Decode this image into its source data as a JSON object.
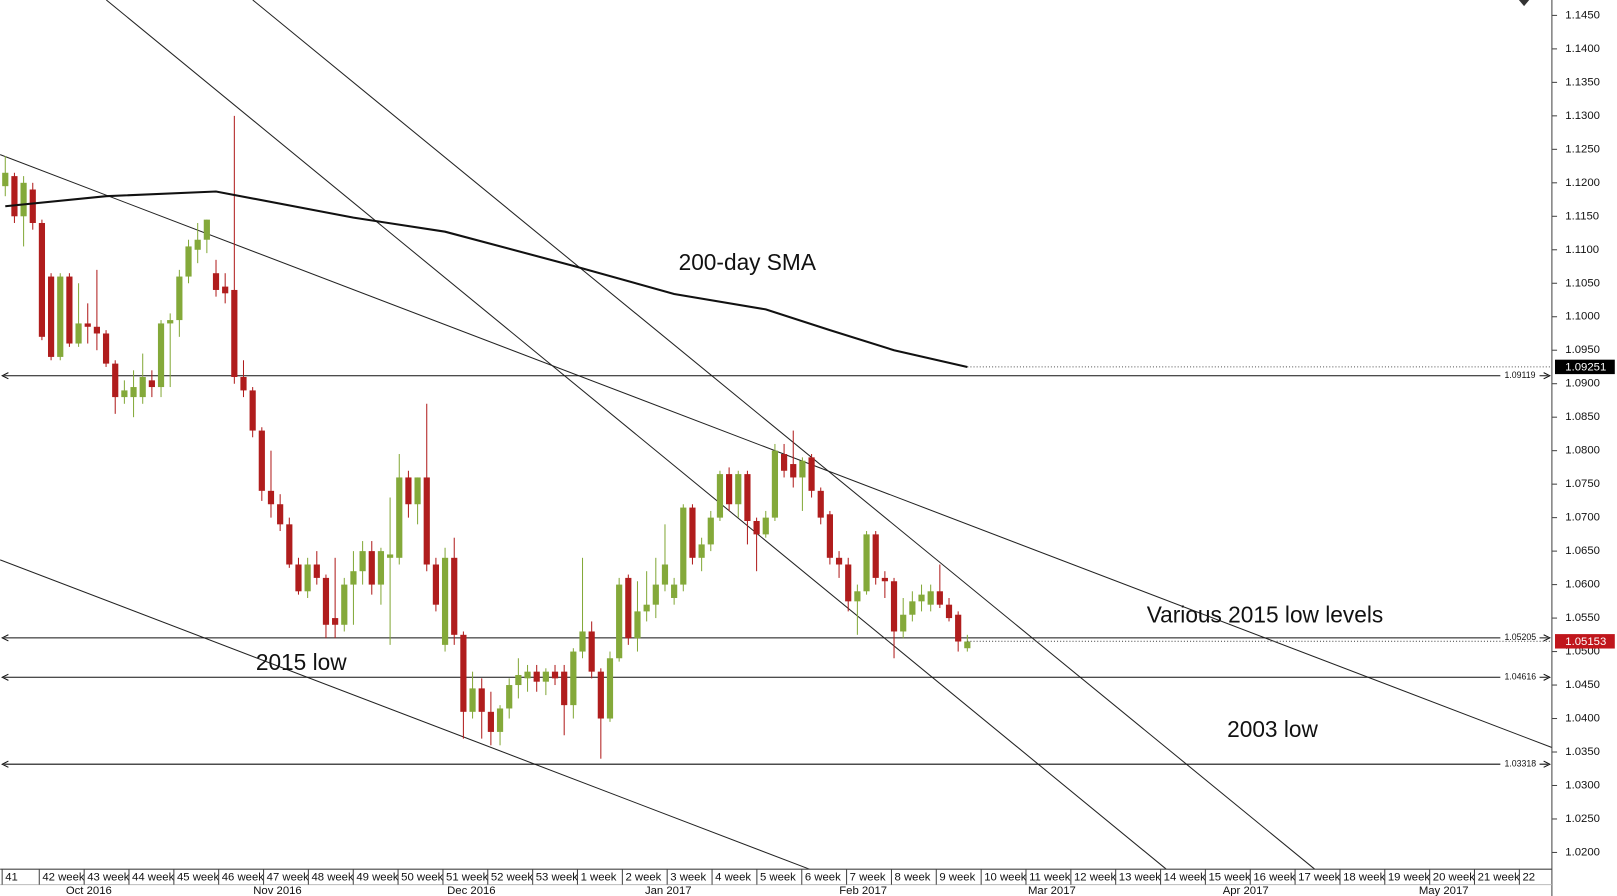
{
  "chart_data": {
    "type": "candlestick",
    "ohlc": [
      [
        1.1195,
        1.124,
        1.118,
        1.1215
      ],
      [
        1.121,
        1.1215,
        1.114,
        1.115
      ],
      [
        1.115,
        1.121,
        1.1105,
        1.12
      ],
      [
        1.119,
        1.12,
        1.113,
        1.114
      ],
      [
        1.114,
        1.1145,
        1.0965,
        1.097
      ],
      [
        1.106,
        1.1065,
        1.0935,
        1.094
      ],
      [
        1.094,
        1.1065,
        1.0935,
        1.106
      ],
      [
        1.106,
        1.1065,
        1.0955,
        1.096
      ],
      [
        1.096,
        1.105,
        1.0955,
        1.099
      ],
      [
        1.099,
        1.102,
        1.096,
        1.0985
      ],
      [
        1.0985,
        1.107,
        1.095,
        1.0975
      ],
      [
        1.0975,
        1.098,
        1.0925,
        1.093
      ],
      [
        1.093,
        1.0935,
        1.0855,
        1.088
      ],
      [
        1.088,
        1.0905,
        1.087,
        1.089
      ],
      [
        1.088,
        1.092,
        1.085,
        1.0895
      ],
      [
        1.088,
        1.0945,
        1.087,
        1.091
      ],
      [
        1.0905,
        1.092,
        1.088,
        1.0895
      ],
      [
        1.0895,
        1.0995,
        1.088,
        1.099
      ],
      [
        1.099,
        1.1005,
        1.0895,
        1.0995
      ],
      [
        1.0995,
        1.107,
        1.097,
        1.106
      ],
      [
        1.106,
        1.1115,
        1.105,
        1.1105
      ],
      [
        1.11,
        1.114,
        1.108,
        1.1115
      ],
      [
        1.1115,
        1.1145,
        1.1095,
        1.1145
      ],
      [
        1.1065,
        1.1085,
        1.103,
        1.104
      ],
      [
        1.1045,
        1.1065,
        1.102,
        1.1035
      ],
      [
        1.104,
        1.13,
        1.09,
        1.091
      ],
      [
        1.091,
        1.0935,
        1.088,
        1.089
      ],
      [
        1.089,
        1.0895,
        1.082,
        1.083
      ],
      [
        1.083,
        1.0835,
        1.0725,
        1.074
      ],
      [
        1.074,
        1.08,
        1.07,
        1.072
      ],
      [
        1.072,
        1.0735,
        1.068,
        1.069
      ],
      [
        1.069,
        1.07,
        1.0625,
        1.063
      ],
      [
        1.063,
        1.064,
        1.0585,
        1.059
      ],
      [
        1.059,
        1.064,
        1.058,
        1.063
      ],
      [
        1.063,
        1.065,
        1.06,
        1.061
      ],
      [
        1.061,
        1.0615,
        1.052,
        1.054
      ],
      [
        1.055,
        1.064,
        1.052,
        1.054
      ],
      [
        1.054,
        1.061,
        1.053,
        1.06
      ],
      [
        1.06,
        1.065,
        1.054,
        1.062
      ],
      [
        1.062,
        1.0665,
        1.06,
        1.065
      ],
      [
        1.065,
        1.0665,
        1.0585,
        1.06
      ],
      [
        1.06,
        1.0655,
        1.057,
        1.065
      ],
      [
        1.064,
        1.073,
        1.051,
        1.0645
      ],
      [
        1.064,
        1.0795,
        1.063,
        1.076
      ],
      [
        1.076,
        1.077,
        1.07,
        1.072
      ],
      [
        1.072,
        1.076,
        1.069,
        1.076
      ],
      [
        1.076,
        1.087,
        1.062,
        1.063
      ],
      [
        1.063,
        1.064,
        1.056,
        1.057
      ],
      [
        1.051,
        1.0655,
        1.05,
        1.064
      ],
      [
        1.064,
        1.067,
        1.051,
        1.0525
      ],
      [
        1.0525,
        1.053,
        1.037,
        1.041
      ],
      [
        1.041,
        1.047,
        1.04,
        1.0445
      ],
      [
        1.0445,
        1.046,
        1.037,
        1.041
      ],
      [
        1.041,
        1.044,
        1.036,
        1.038
      ],
      [
        1.038,
        1.042,
        1.036,
        1.0415
      ],
      [
        1.0415,
        1.046,
        1.04,
        1.045
      ],
      [
        1.045,
        1.049,
        1.043,
        1.0465
      ],
      [
        1.046,
        1.048,
        1.044,
        1.047
      ],
      [
        1.047,
        1.048,
        1.044,
        1.0455
      ],
      [
        1.0455,
        1.0475,
        1.0435,
        1.047
      ],
      [
        1.047,
        1.048,
        1.045,
        1.046
      ],
      [
        1.047,
        1.048,
        1.0375,
        1.042
      ],
      [
        1.042,
        1.0505,
        1.04,
        1.05
      ],
      [
        1.05,
        1.064,
        1.049,
        1.053
      ],
      [
        1.053,
        1.0545,
        1.046,
        1.047
      ],
      [
        1.047,
        1.0475,
        1.034,
        1.04
      ],
      [
        1.04,
        1.05,
        1.0395,
        1.049
      ],
      [
        1.049,
        1.061,
        1.0485,
        1.06
      ],
      [
        1.061,
        1.0615,
        1.051,
        1.052
      ],
      [
        1.052,
        1.0605,
        1.05,
        1.056
      ],
      [
        1.056,
        1.062,
        1.0545,
        1.057
      ],
      [
        1.057,
        1.064,
        1.055,
        1.06
      ],
      [
        1.06,
        1.069,
        1.059,
        1.063
      ],
      [
        1.058,
        1.061,
        1.057,
        1.06
      ],
      [
        1.06,
        1.072,
        1.059,
        1.0715
      ],
      [
        1.0715,
        1.072,
        1.063,
        1.064
      ],
      [
        1.064,
        1.067,
        1.062,
        1.066
      ],
      [
        1.066,
        1.071,
        1.065,
        1.07
      ],
      [
        1.07,
        1.077,
        1.0695,
        1.0765
      ],
      [
        1.0765,
        1.0775,
        1.071,
        1.072
      ],
      [
        1.072,
        1.077,
        1.07,
        1.0765
      ],
      [
        1.0765,
        1.077,
        1.066,
        1.0695
      ],
      [
        1.0695,
        1.07,
        1.062,
        1.0675
      ],
      [
        1.0675,
        1.071,
        1.067,
        1.07
      ],
      [
        1.07,
        1.081,
        1.0695,
        1.08
      ],
      [
        1.0795,
        1.081,
        1.076,
        1.077
      ],
      [
        1.078,
        1.083,
        1.0745,
        1.076
      ],
      [
        1.076,
        1.079,
        1.071,
        1.0785
      ],
      [
        1.079,
        1.0795,
        1.073,
        1.074
      ],
      [
        1.074,
        1.0745,
        1.069,
        1.07
      ],
      [
        1.0705,
        1.071,
        1.063,
        1.064
      ],
      [
        1.064,
        1.065,
        1.061,
        1.063
      ],
      [
        1.063,
        1.064,
        1.056,
        1.0575
      ],
      [
        1.0575,
        1.06,
        1.0525,
        1.059
      ],
      [
        1.059,
        1.068,
        1.0585,
        1.0675
      ],
      [
        1.0675,
        1.068,
        1.06,
        1.061
      ],
      [
        1.061,
        1.062,
        1.058,
        1.0605
      ],
      [
        1.0605,
        1.061,
        1.049,
        1.053
      ],
      [
        1.053,
        1.058,
        1.052,
        1.0555
      ],
      [
        1.0555,
        1.059,
        1.0545,
        1.0575
      ],
      [
        1.0575,
        1.06,
        1.056,
        1.0585
      ],
      [
        1.057,
        1.06,
        1.056,
        1.059
      ],
      [
        1.059,
        1.063,
        1.0565,
        1.057
      ],
      [
        1.057,
        1.058,
        1.0545,
        1.055
      ],
      [
        1.0555,
        1.056,
        1.05,
        1.0515
      ],
      [
        1.0505,
        1.0525,
        1.05,
        1.0515
      ]
    ],
    "up_color": "#84a93a",
    "down_color": "#b01d1d",
    "sma": {
      "x": [
        0,
        11,
        23,
        38,
        48,
        62,
        73,
        83,
        90,
        97,
        105
      ],
      "values": [
        1.1165,
        1.118,
        1.1187,
        1.1148,
        1.1127,
        1.1076,
        1.1034,
        1.1011,
        1.098,
        1.095,
        1.0925
      ],
      "color": "#111111"
    },
    "levels": [
      1.09119,
      1.05205,
      1.04616,
      1.03318
    ],
    "price_tags": [
      {
        "value": 1.09251,
        "color": "#000000"
      },
      {
        "value": 1.05153,
        "color": "#c0161c"
      }
    ],
    "annotations": [
      "200-day SMA",
      "Various 2015 low levels",
      "2015 low",
      "2003 low"
    ],
    "xlim": [
      -0.56,
      168.8
    ],
    "ylim": [
      1.0175,
      1.1473
    ],
    "yticks": [
      {
        "value": 1.02,
        "label": "1.0200"
      },
      {
        "value": 1.025,
        "label": "1.0250"
      },
      {
        "value": 1.03,
        "label": "1.0300"
      },
      {
        "value": 1.035,
        "label": "1.0350"
      },
      {
        "value": 1.04,
        "label": "1.0400"
      },
      {
        "value": 1.045,
        "label": "1.0450"
      },
      {
        "value": 1.05,
        "label": "1.0500"
      },
      {
        "value": 1.055,
        "label": "1.0550"
      },
      {
        "value": 1.06,
        "label": "1.0600"
      },
      {
        "value": 1.065,
        "label": "1.0650"
      },
      {
        "value": 1.07,
        "label": "1.0700"
      },
      {
        "value": 1.075,
        "label": "1.0750"
      },
      {
        "value": 1.08,
        "label": "1.0800"
      },
      {
        "value": 1.085,
        "label": "1.0850"
      },
      {
        "value": 1.09,
        "label": "1.0900"
      },
      {
        "value": 1.095,
        "label": "1.0950"
      },
      {
        "value": 1.1,
        "label": "1.1000"
      },
      {
        "value": 1.105,
        "label": "1.1050"
      },
      {
        "value": 1.11,
        "label": "1.1100"
      },
      {
        "value": 1.115,
        "label": "1.1150"
      },
      {
        "value": 1.12,
        "label": "1.1200"
      },
      {
        "value": 1.125,
        "label": "1.1250"
      },
      {
        "value": 1.13,
        "label": "1.1300"
      },
      {
        "value": 1.135,
        "label": "1.1350"
      },
      {
        "value": 1.14,
        "label": "1.1400"
      },
      {
        "value": 1.145,
        "label": "1.1450"
      }
    ],
    "xticks": [
      {
        "value": -0.34,
        "label": "41"
      },
      {
        "value": 3.71,
        "label": "42 week"
      },
      {
        "value": 8.61,
        "label": "43 week"
      },
      {
        "value": 13.5,
        "label": "44 week"
      },
      {
        "value": 18.4,
        "label": "45 week"
      },
      {
        "value": 23.29,
        "label": "46 week"
      },
      {
        "value": 28.19,
        "label": "47 week"
      },
      {
        "value": 33.08,
        "label": "48 week"
      },
      {
        "value": 37.98,
        "label": "49 week"
      },
      {
        "value": 42.87,
        "label": "50 week"
      },
      {
        "value": 47.77,
        "label": "51 week"
      },
      {
        "value": 52.66,
        "label": "52 week"
      },
      {
        "value": 57.56,
        "label": "53 week"
      },
      {
        "value": 62.45,
        "label": "1 week"
      },
      {
        "value": 67.35,
        "label": "2 week"
      },
      {
        "value": 72.24,
        "label": "3 week"
      },
      {
        "value": 77.14,
        "label": "4 week"
      },
      {
        "value": 82.03,
        "label": "5 week"
      },
      {
        "value": 86.93,
        "label": "6 week"
      },
      {
        "value": 91.82,
        "label": "7 week"
      },
      {
        "value": 96.72,
        "label": "8 week"
      },
      {
        "value": 101.61,
        "label": "9 week"
      },
      {
        "value": 106.51,
        "label": "10 week"
      },
      {
        "value": 111.4,
        "label": "11 week"
      },
      {
        "value": 116.3,
        "label": "12 week"
      },
      {
        "value": 121.19,
        "label": "13 week"
      },
      {
        "value": 126.09,
        "label": "14 week"
      },
      {
        "value": 130.98,
        "label": "15 week"
      },
      {
        "value": 135.88,
        "label": "16 week"
      },
      {
        "value": 140.77,
        "label": "17 week"
      },
      {
        "value": 145.67,
        "label": "18 week"
      },
      {
        "value": 150.56,
        "label": "19 week"
      },
      {
        "value": 155.46,
        "label": "20 week"
      },
      {
        "value": 160.35,
        "label": "21 week"
      },
      {
        "value": 165.25,
        "label": "22"
      }
    ],
    "month_ticks": [
      {
        "value": 9.12,
        "label": "Oct 2016"
      },
      {
        "value": 29.71,
        "label": "Nov 2016"
      },
      {
        "value": 50.87,
        "label": "Dec 2016"
      },
      {
        "value": 72.36,
        "label": "Jan 2017"
      },
      {
        "value": 93.63,
        "label": "Feb 2017"
      },
      {
        "value": 114.23,
        "label": "Mar 2017"
      },
      {
        "value": 135.38,
        "label": "Apr 2017"
      },
      {
        "value": 156.99,
        "label": "May 2017"
      }
    ]
  }
}
